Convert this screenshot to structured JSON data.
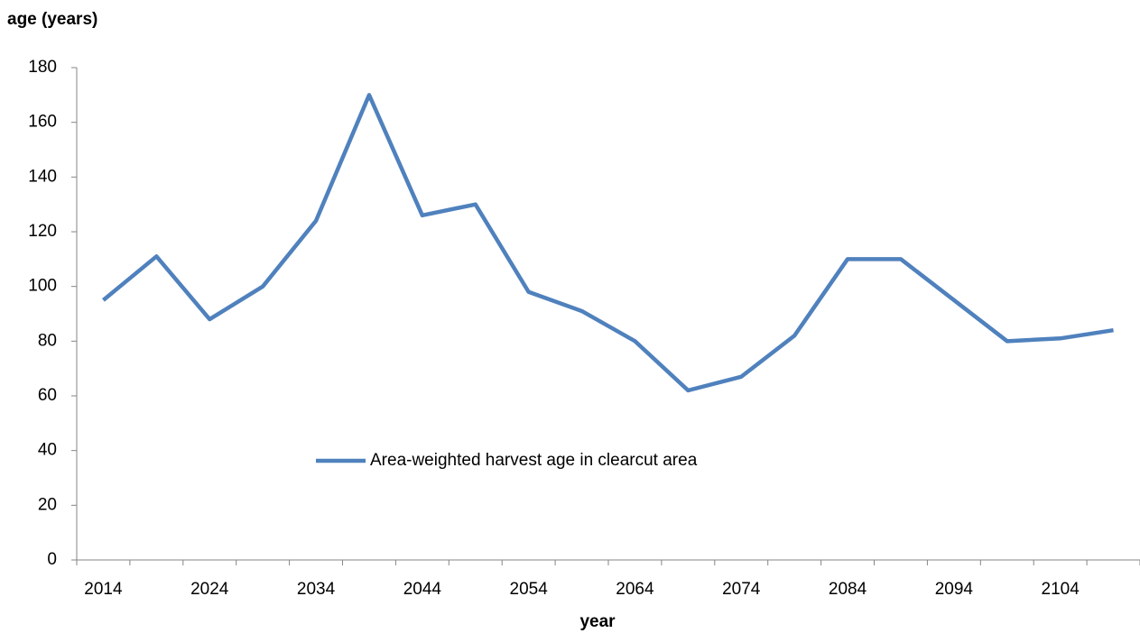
{
  "chart_data": {
    "type": "line",
    "y_label": "age (years)",
    "x_label": "year",
    "categories": [
      "2014",
      null,
      "2024",
      null,
      "2034",
      null,
      "2044",
      null,
      "2054",
      null,
      "2064",
      null,
      "2074",
      null,
      "2084",
      null,
      "2094",
      null,
      "2104",
      null
    ],
    "series": [
      {
        "name": "Area-weighted harvest age in clearcut area",
        "color": "#4f81bd",
        "values": [
          95,
          111,
          88,
          100,
          124,
          170,
          126,
          130,
          98,
          91,
          80,
          62,
          67,
          82,
          110,
          110,
          95,
          80,
          81,
          84
        ]
      }
    ],
    "ylim": [
      0,
      180
    ],
    "yticks": [
      0,
      20,
      40,
      60,
      80,
      100,
      120,
      140,
      160,
      180
    ],
    "grid": false,
    "legend": "center"
  }
}
